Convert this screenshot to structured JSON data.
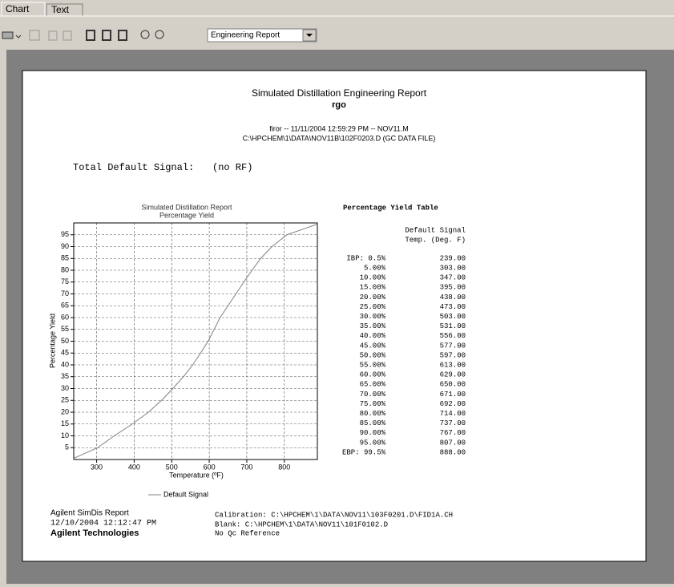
{
  "tabs": [
    "Chart",
    "Text"
  ],
  "toolbar": {
    "report_select": "Engineering Report"
  },
  "report": {
    "title": "Simulated Distillation Engineering Report",
    "sample": "rgo",
    "run_info": "firor -- 11/11/2004 12:59:29 PM -- NOV11.M",
    "data_file": "C:\\HPCHEM\\1\\DATA\\NOV11B\\102F0203.D (GC DATA FILE)",
    "total_label": "Total Default Signal:",
    "total_value": "(no RF)",
    "footer": {
      "report_name": "Agilent SimDis Report",
      "timestamp": "12/10/2004 12:12:47 PM",
      "company": "Agilent Technologies",
      "calibration": "Calibration: C:\\HPCHEM\\1\\DATA\\NOV11\\103F0201.D\\FID1A.CH",
      "blank": "Blank: C:\\HPCHEM\\1\\DATA\\NOV11\\101F0102.D",
      "qc": "No Qc Reference"
    }
  },
  "table": {
    "title": "Percentage Yield Table",
    "header": [
      "Default Signal",
      "Temp. (Deg. F)"
    ],
    "rows": [
      [
        "IBP: 0.5%",
        "239.00"
      ],
      [
        "5.00%",
        "303.00"
      ],
      [
        "10.00%",
        "347.00"
      ],
      [
        "15.00%",
        "395.00"
      ],
      [
        "20.00%",
        "438.00"
      ],
      [
        "25.00%",
        "473.00"
      ],
      [
        "30.00%",
        "503.00"
      ],
      [
        "35.00%",
        "531.00"
      ],
      [
        "40.00%",
        "556.00"
      ],
      [
        "45.00%",
        "577.00"
      ],
      [
        "50.00%",
        "597.00"
      ],
      [
        "55.00%",
        "613.00"
      ],
      [
        "60.00%",
        "629.00"
      ],
      [
        "65.00%",
        "650.00"
      ],
      [
        "70.00%",
        "671.00"
      ],
      [
        "75.00%",
        "692.00"
      ],
      [
        "80.00%",
        "714.00"
      ],
      [
        "85.00%",
        "737.00"
      ],
      [
        "90.00%",
        "767.00"
      ],
      [
        "95.00%",
        "807.00"
      ],
      [
        "EBP: 99.5%",
        "888.00"
      ]
    ]
  },
  "chart_data": {
    "type": "line",
    "title": "Simulated Distillation Report",
    "subtitle": "Percentage Yield",
    "x_label": "Temperature (ºF)",
    "y_label": "Percentage Yield",
    "x": [
      239,
      303,
      347,
      395,
      438,
      473,
      503,
      531,
      556,
      577,
      597,
      613,
      629,
      650,
      671,
      692,
      714,
      737,
      767,
      807,
      888
    ],
    "series": [
      {
        "name": "Default Signal",
        "color": "#808080",
        "values": [
          0.5,
          5,
          10,
          15,
          20,
          25,
          30,
          35,
          40,
          45,
          50,
          55,
          60,
          65,
          70,
          75,
          80,
          85,
          90,
          95,
          99.5
        ]
      }
    ],
    "xlim": [
      239,
      888
    ],
    "ylim": [
      0,
      100
    ],
    "xticks": [
      300,
      400,
      500,
      600,
      700,
      800
    ],
    "yticks": [
      5,
      10,
      15,
      20,
      25,
      30,
      35,
      40,
      45,
      50,
      55,
      60,
      65,
      70,
      75,
      80,
      85,
      90,
      95
    ],
    "grid": true
  }
}
